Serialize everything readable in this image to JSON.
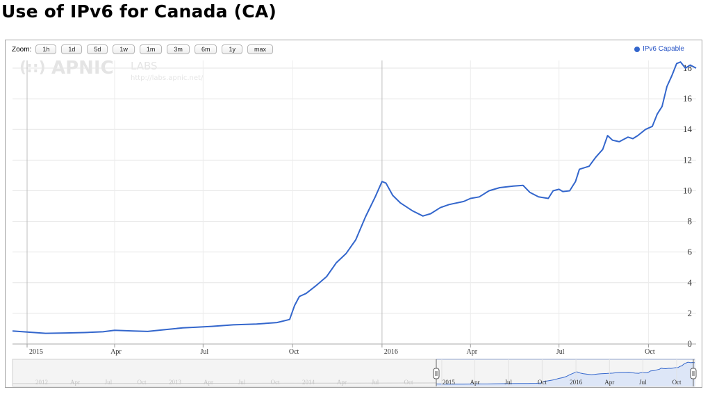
{
  "page": {
    "title": "Use of IPv6 for Canada (CA)"
  },
  "toolbar": {
    "zoom_label": "Zoom:",
    "zoom_buttons": [
      "1h",
      "1d",
      "5d",
      "1w",
      "1m",
      "3m",
      "6m",
      "1y",
      "max"
    ]
  },
  "legend": {
    "label": "IPv6 Capable",
    "color": "#3366cc"
  },
  "watermark": {
    "brand": "APNIC",
    "sub": "LABS",
    "url": "http://labs.apnic.net/"
  },
  "navigator": {
    "labels_faded": [
      "2012",
      "Apr",
      "Jul",
      "Oct",
      "2013",
      "Apr",
      "Jul",
      "Oct",
      "2014",
      "Apr",
      "Jul",
      "Oct"
    ],
    "labels_active": [
      "2015",
      "Apr",
      "Jul",
      "Oct",
      "2016",
      "Apr",
      "Jul",
      "Oct"
    ]
  },
  "chart_data": {
    "type": "line",
    "title": "Use of IPv6 for Canada (CA)",
    "xlabel": "",
    "ylabel": "",
    "x_axis": {
      "type": "date",
      "range": [
        "2014-12-17",
        "2016-11-19"
      ],
      "tick_labels": [
        {
          "label": "2015",
          "date": "2015-01-01"
        },
        {
          "label": "Apr",
          "date": "2015-04-01"
        },
        {
          "label": "Jul",
          "date": "2015-07-01"
        },
        {
          "label": "Oct",
          "date": "2015-10-01"
        },
        {
          "label": "2016",
          "date": "2016-01-01"
        },
        {
          "label": "Apr",
          "date": "2016-04-01"
        },
        {
          "label": "Jul",
          "date": "2016-07-01"
        },
        {
          "label": "Oct",
          "date": "2016-10-01"
        }
      ]
    },
    "y_axis": {
      "range": [
        0,
        18.5
      ],
      "ticks": [
        0,
        2,
        4,
        6,
        8,
        10,
        12,
        14,
        16,
        18
      ],
      "position": "right"
    },
    "grid": true,
    "legend_position": "top-right",
    "series": [
      {
        "name": "IPv6 Capable",
        "color": "#3366cc",
        "points": [
          [
            "2014-12-17",
            0.85
          ],
          [
            "2015-01-01",
            0.78
          ],
          [
            "2015-01-20",
            0.7
          ],
          [
            "2015-02-10",
            0.72
          ],
          [
            "2015-03-01",
            0.75
          ],
          [
            "2015-03-20",
            0.8
          ],
          [
            "2015-04-01",
            0.9
          ],
          [
            "2015-04-20",
            0.85
          ],
          [
            "2015-05-05",
            0.82
          ],
          [
            "2015-05-25",
            0.95
          ],
          [
            "2015-06-10",
            1.05
          ],
          [
            "2015-06-25",
            1.1
          ],
          [
            "2015-07-10",
            1.15
          ],
          [
            "2015-08-01",
            1.25
          ],
          [
            "2015-08-25",
            1.3
          ],
          [
            "2015-09-15",
            1.4
          ],
          [
            "2015-09-28",
            1.6
          ],
          [
            "2015-10-03",
            2.5
          ],
          [
            "2015-10-08",
            3.1
          ],
          [
            "2015-10-15",
            3.3
          ],
          [
            "2015-10-25",
            3.8
          ],
          [
            "2015-11-05",
            4.4
          ],
          [
            "2015-11-15",
            5.3
          ],
          [
            "2015-11-25",
            5.9
          ],
          [
            "2015-12-05",
            6.8
          ],
          [
            "2015-12-15",
            8.3
          ],
          [
            "2015-12-25",
            9.6
          ],
          [
            "2016-01-01",
            10.6
          ],
          [
            "2016-01-05",
            10.5
          ],
          [
            "2016-01-12",
            9.7
          ],
          [
            "2016-01-20",
            9.2
          ],
          [
            "2016-02-01",
            8.7
          ],
          [
            "2016-02-12",
            8.35
          ],
          [
            "2016-02-20",
            8.5
          ],
          [
            "2016-03-01",
            8.9
          ],
          [
            "2016-03-10",
            9.1
          ],
          [
            "2016-03-25",
            9.3
          ],
          [
            "2016-04-01",
            9.5
          ],
          [
            "2016-04-10",
            9.6
          ],
          [
            "2016-04-20",
            10.0
          ],
          [
            "2016-05-01",
            10.2
          ],
          [
            "2016-05-15",
            10.3
          ],
          [
            "2016-05-25",
            10.35
          ],
          [
            "2016-06-01",
            9.9
          ],
          [
            "2016-06-10",
            9.6
          ],
          [
            "2016-06-20",
            9.5
          ],
          [
            "2016-06-25",
            10.0
          ],
          [
            "2016-07-01",
            10.1
          ],
          [
            "2016-07-05",
            9.95
          ],
          [
            "2016-07-12",
            10.0
          ],
          [
            "2016-07-18",
            10.6
          ],
          [
            "2016-07-22",
            11.4
          ],
          [
            "2016-08-01",
            11.6
          ],
          [
            "2016-08-08",
            12.2
          ],
          [
            "2016-08-15",
            12.7
          ],
          [
            "2016-08-20",
            13.6
          ],
          [
            "2016-08-25",
            13.3
          ],
          [
            "2016-09-01",
            13.2
          ],
          [
            "2016-09-10",
            13.5
          ],
          [
            "2016-09-15",
            13.4
          ],
          [
            "2016-09-20",
            13.6
          ],
          [
            "2016-09-28",
            14.0
          ],
          [
            "2016-10-05",
            14.2
          ],
          [
            "2016-10-10",
            15.0
          ],
          [
            "2016-10-15",
            15.5
          ],
          [
            "2016-10-20",
            16.8
          ],
          [
            "2016-10-25",
            17.5
          ],
          [
            "2016-10-30",
            18.3
          ],
          [
            "2016-11-03",
            18.4
          ],
          [
            "2016-11-08",
            18.0
          ],
          [
            "2016-11-13",
            18.2
          ],
          [
            "2016-11-19",
            18.0
          ]
        ]
      }
    ]
  }
}
